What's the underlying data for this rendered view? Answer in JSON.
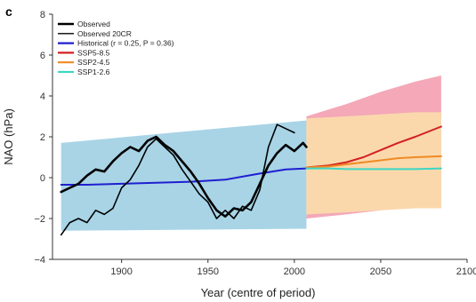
{
  "panel_label": "c",
  "chart_data": {
    "type": "line",
    "xlabel": "Year (centre of period)",
    "ylabel": "NAO (hPa)",
    "xlim": [
      1860,
      2100
    ],
    "ylim": [
      -4,
      8
    ],
    "xticks": [
      1900,
      1950,
      2000,
      2050,
      2100
    ],
    "yticks": [
      -4,
      -2,
      0,
      2,
      4,
      6,
      8
    ],
    "grid": false,
    "legend_placement": "top-left",
    "legend": [
      {
        "label": "Observed",
        "color": "#000000"
      },
      {
        "label": "Observed 20CR",
        "color": "#000000"
      },
      {
        "label": "Historical (r = 0.25, P = 0.36)",
        "color": "#1f1fd0"
      },
      {
        "label": "SSP5-8.5",
        "color": "#d42020"
      },
      {
        "label": "SSP2-4.5",
        "color": "#f08a24"
      },
      {
        "label": "SSP1-2.6",
        "color": "#3dd6c4"
      }
    ],
    "bands": [
      {
        "name": "Historical range",
        "color": "#a8d4e6",
        "x": [
          1865,
          2007
        ],
        "lower": [
          -2.6,
          -2.5
        ],
        "upper": [
          1.7,
          2.8
        ]
      },
      {
        "name": "SSP5-8.5 range",
        "color": "#f4a8b8",
        "x": [
          2007,
          2030,
          2050,
          2070,
          2085
        ],
        "lower": [
          -2.0,
          -1.8,
          -1.6,
          -1.4,
          -1.3
        ],
        "upper": [
          3.0,
          3.6,
          4.2,
          4.7,
          5.0
        ]
      },
      {
        "name": "SSP1-2.6 range",
        "color": "#c9f0ec",
        "x": [
          2007,
          2030,
          2050,
          2070,
          2085
        ],
        "lower": [
          -1.8,
          -1.6,
          -1.5,
          -1.4,
          -1.4
        ],
        "upper": [
          2.5,
          2.6,
          2.7,
          2.8,
          2.9
        ]
      },
      {
        "name": "SSP2-4.5 range",
        "color": "#fad8ac",
        "x": [
          2007,
          2030,
          2050,
          2070,
          2085
        ],
        "lower": [
          -1.8,
          -1.7,
          -1.6,
          -1.5,
          -1.5
        ],
        "upper": [
          2.9,
          3.0,
          3.1,
          3.2,
          3.2
        ]
      }
    ],
    "series": [
      {
        "name": "Historical (r = 0.25, P = 0.36)",
        "color": "#1f1fd0",
        "width": 2,
        "x": [
          1865,
          1880,
          1900,
          1920,
          1940,
          1960,
          1980,
          1995,
          2007
        ],
        "y": [
          -0.35,
          -0.35,
          -0.3,
          -0.25,
          -0.2,
          -0.1,
          0.2,
          0.4,
          0.45
        ]
      },
      {
        "name": "SSP5-8.5",
        "color": "#d42020",
        "width": 2,
        "x": [
          2007,
          2020,
          2030,
          2040,
          2050,
          2060,
          2070,
          2085
        ],
        "y": [
          0.5,
          0.6,
          0.75,
          1.0,
          1.35,
          1.7,
          2.0,
          2.5
        ]
      },
      {
        "name": "SSP2-4.5",
        "color": "#f08a24",
        "width": 2,
        "x": [
          2007,
          2020,
          2030,
          2040,
          2050,
          2060,
          2070,
          2085
        ],
        "y": [
          0.5,
          0.55,
          0.65,
          0.75,
          0.85,
          0.95,
          1.0,
          1.05
        ]
      },
      {
        "name": "SSP1-2.6",
        "color": "#3dd6c4",
        "width": 2,
        "x": [
          2007,
          2020,
          2030,
          2040,
          2050,
          2060,
          2070,
          2085
        ],
        "y": [
          0.45,
          0.45,
          0.42,
          0.42,
          0.42,
          0.42,
          0.42,
          0.45
        ]
      },
      {
        "name": "Observed",
        "color": "#000000",
        "width": 2.6,
        "x": [
          1865,
          1870,
          1875,
          1880,
          1885,
          1890,
          1895,
          1900,
          1905,
          1910,
          1915,
          1920,
          1925,
          1930,
          1935,
          1940,
          1945,
          1950,
          1955,
          1960,
          1965,
          1970,
          1975,
          1980,
          1985,
          1990,
          1995,
          2000,
          2005,
          2007
        ],
        "y": [
          -0.7,
          -0.5,
          -0.3,
          0.1,
          0.4,
          0.3,
          0.8,
          1.2,
          1.5,
          1.3,
          1.8,
          2.0,
          1.6,
          1.3,
          0.8,
          0.3,
          -0.3,
          -1.0,
          -1.6,
          -1.9,
          -1.5,
          -1.6,
          -1.2,
          -0.3,
          0.6,
          1.2,
          1.6,
          1.3,
          1.7,
          1.5
        ]
      },
      {
        "name": "Observed 20CR",
        "color": "#000000",
        "width": 1.6,
        "x": [
          1865,
          1870,
          1875,
          1880,
          1885,
          1890,
          1895,
          1900,
          1905,
          1910,
          1915,
          1920,
          1925,
          1930,
          1935,
          1940,
          1945,
          1950,
          1955,
          1960,
          1965,
          1970,
          1975,
          1980,
          1985,
          1990,
          1995,
          2000
        ],
        "y": [
          -2.8,
          -2.2,
          -2.0,
          -2.2,
          -1.6,
          -1.8,
          -1.5,
          -0.5,
          -0.1,
          0.6,
          1.5,
          1.9,
          1.5,
          1.1,
          0.4,
          -0.2,
          -0.8,
          -1.2,
          -2.0,
          -1.6,
          -2.0,
          -1.4,
          -1.6,
          -0.6,
          1.5,
          2.6,
          2.4,
          2.2
        ]
      }
    ]
  }
}
